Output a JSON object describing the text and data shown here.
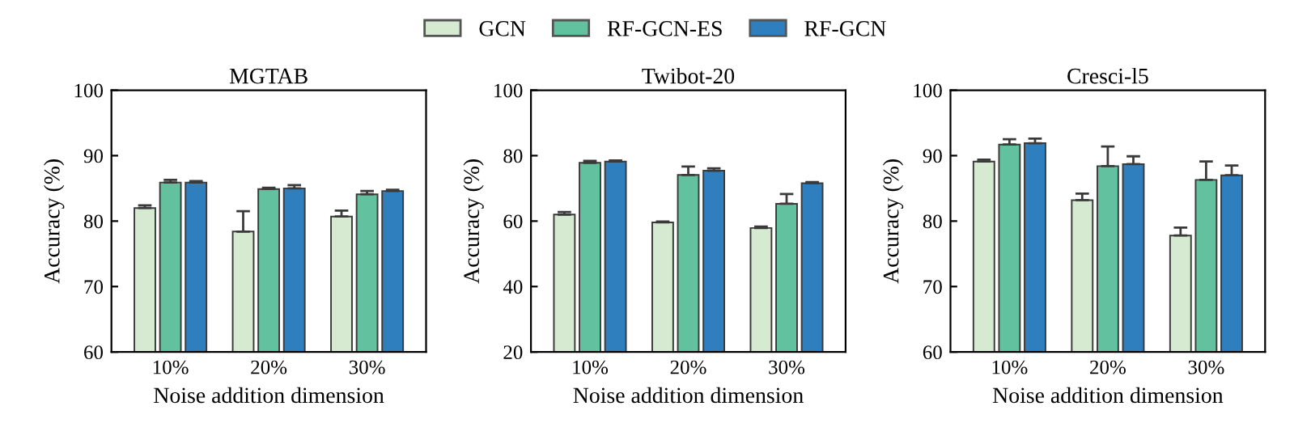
{
  "chart_data": [
    {
      "type": "bar",
      "title": "MGTAB",
      "xlabel": "Noise addition dimension",
      "ylabel": "Accuracy (%)",
      "categories": [
        "10%",
        "20%",
        "30%"
      ],
      "ylim": [
        60,
        100
      ],
      "yticks": [
        60,
        70,
        80,
        90,
        100
      ],
      "legend": "top",
      "series": [
        {
          "name": "GCN",
          "color": "#d5ead0",
          "values": [
            82.0,
            78.4,
            80.7
          ],
          "errors": [
            [
              82.0,
              82.4
            ],
            [
              78.4,
              81.5
            ],
            [
              80.7,
              81.6
            ]
          ]
        },
        {
          "name": "RF-GCN-ES",
          "color": "#62c2a0",
          "values": [
            85.9,
            84.9,
            84.1
          ],
          "errors": [
            [
              85.9,
              86.3
            ],
            [
              84.9,
              85.1
            ],
            [
              84.1,
              84.6
            ]
          ]
        },
        {
          "name": "RF-GCN",
          "color": "#2f7fbf",
          "values": [
            85.9,
            85.0,
            84.6
          ],
          "errors": [
            [
              85.9,
              86.1
            ],
            [
              85.0,
              85.5
            ],
            [
              84.6,
              84.8
            ]
          ]
        }
      ]
    },
    {
      "type": "bar",
      "title": "Twibot-20",
      "xlabel": "Noise addition dimension",
      "ylabel": "Accuracy (%)",
      "categories": [
        "10%",
        "20%",
        "30%"
      ],
      "ylim": [
        20,
        100
      ],
      "yticks": [
        20,
        40,
        60,
        80,
        100
      ],
      "series": [
        {
          "color": "#d5ead0",
          "values": [
            62.0,
            59.6,
            57.9
          ],
          "errors": [
            [
              62.0,
              62.8
            ],
            [
              59.6,
              59.9
            ],
            [
              57.9,
              58.3
            ]
          ]
        },
        {
          "color": "#62c2a0",
          "values": [
            77.8,
            74.1,
            65.3
          ],
          "errors": [
            [
              77.8,
              78.4
            ],
            [
              74.1,
              76.7
            ],
            [
              65.3,
              68.3
            ]
          ]
        },
        {
          "color": "#2f7fbf",
          "values": [
            78.2,
            75.4,
            71.6
          ],
          "errors": [
            [
              78.2,
              78.5
            ],
            [
              75.4,
              76.1
            ],
            [
              71.6,
              71.9
            ]
          ]
        }
      ]
    },
    {
      "type": "bar",
      "title": "Cresci-l5",
      "xlabel": "Noise addition dimension",
      "ylabel": "Accuracy (%)",
      "categories": [
        "10%",
        "20%",
        "30%"
      ],
      "ylim": [
        60,
        100
      ],
      "yticks": [
        60,
        70,
        80,
        90,
        100
      ],
      "series": [
        {
          "color": "#d5ead0",
          "values": [
            89.1,
            83.2,
            77.8
          ],
          "errors": [
            [
              89.1,
              89.4
            ],
            [
              83.2,
              84.2
            ],
            [
              77.8,
              79.0
            ]
          ]
        },
        {
          "color": "#62c2a0",
          "values": [
            91.7,
            88.4,
            86.3
          ],
          "errors": [
            [
              91.7,
              92.5
            ],
            [
              88.4,
              91.4
            ],
            [
              86.3,
              89.1
            ]
          ]
        },
        {
          "color": "#2f7fbf",
          "values": [
            91.9,
            88.7,
            87.0
          ],
          "errors": [
            [
              91.9,
              92.6
            ],
            [
              88.7,
              89.9
            ],
            [
              87.0,
              88.5
            ]
          ]
        }
      ]
    }
  ]
}
